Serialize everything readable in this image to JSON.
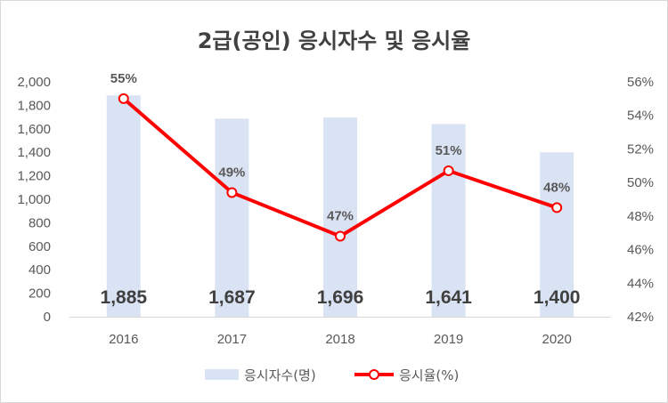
{
  "chart_data": {
    "type": "bar",
    "title": "2급(공인) 응시자수 및 응시율",
    "categories": [
      "2016",
      "2017",
      "2018",
      "2019",
      "2020"
    ],
    "series": [
      {
        "name": "응시자수(명)",
        "type": "bar",
        "axis": "left",
        "values": [
          1885,
          1687,
          1696,
          1641,
          1400
        ],
        "data_labels": [
          "1,885",
          "1,687",
          "1,696",
          "1,641",
          "1,400"
        ],
        "color": "#dae3f3"
      },
      {
        "name": "응시율(%)",
        "type": "line",
        "axis": "right",
        "values": [
          55.0,
          49.4,
          46.8,
          50.7,
          48.5
        ],
        "data_labels": [
          "55%",
          "49%",
          "47%",
          "51%",
          "48%"
        ],
        "color": "#ff0000"
      }
    ],
    "y_left": {
      "ylim": [
        0,
        2000
      ],
      "ticks": [
        0,
        200,
        400,
        600,
        800,
        1000,
        1200,
        1400,
        1600,
        1800,
        2000
      ],
      "tick_labels": [
        "0",
        "200",
        "400",
        "600",
        "800",
        "1,000",
        "1,200",
        "1,400",
        "1,600",
        "1,800",
        "2,000"
      ]
    },
    "y_right": {
      "ylim": [
        42,
        56
      ],
      "ticks": [
        42,
        44,
        46,
        48,
        50,
        52,
        54,
        56
      ],
      "tick_labels": [
        "42%",
        "44%",
        "46%",
        "48%",
        "50%",
        "52%",
        "54%",
        "56%"
      ]
    },
    "grid": false,
    "legend": "bottom"
  }
}
